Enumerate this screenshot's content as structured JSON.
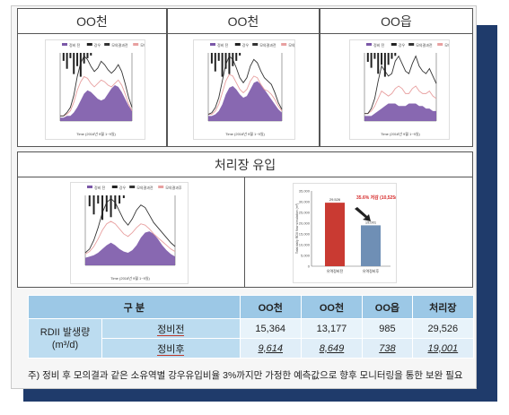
{
  "panels": {
    "top": [
      {
        "title": "OO천"
      },
      {
        "title": "OO천"
      },
      {
        "title": "OO읍"
      }
    ],
    "treatment": {
      "title": "처리장 유입"
    }
  },
  "mini_legend": {
    "items": [
      "정비 전",
      "강우",
      "모의결과전",
      "모의결과후"
    ]
  },
  "colors": {
    "rain": "#222222",
    "before_area": "#7b58a8",
    "sim_line": "#333333",
    "after_line": "#e8a0a0",
    "bar_before": "#c93a32",
    "bar_after": "#6f8fb5",
    "header_bg": "#9cc8e6",
    "frame_dark": "#1f3b6b"
  },
  "chart_data": [
    {
      "type": "area",
      "xlabel": "Time (2016년 9월 1~9일)",
      "series": [
        {
          "name": "정비 전",
          "values": [
            0.2,
            0.2,
            0.3,
            0.3,
            0.5,
            0.8,
            1.2,
            1.6,
            1.8,
            1.7,
            1.5,
            1.3,
            1.2,
            1.3,
            1.6,
            1.9,
            2.1,
            2.0,
            1.7,
            1.3,
            0.9,
            0.6
          ]
        },
        {
          "name": "모의결과전",
          "values": [
            0.3,
            0.3,
            0.5,
            0.8,
            1.5,
            2.6,
            3.4,
            3.8,
            3.6,
            3.2,
            2.9,
            3.1,
            3.5,
            3.3,
            3.0,
            2.8,
            3.0,
            3.3,
            2.9,
            2.2,
            1.4,
            0.8
          ]
        },
        {
          "name": "모의결과후",
          "values": [
            0.3,
            0.3,
            0.4,
            0.6,
            1.1,
            1.8,
            2.3,
            2.6,
            2.5,
            2.2,
            2.0,
            2.2,
            2.4,
            2.3,
            2.1,
            2.0,
            2.2,
            2.4,
            2.1,
            1.6,
            1.0,
            0.6
          ]
        },
        {
          "name": "강우",
          "values": [
            0,
            3,
            6,
            2,
            8,
            5,
            9,
            4,
            2,
            1,
            0,
            0,
            0,
            0,
            0,
            0,
            0,
            0,
            0,
            0,
            0,
            0
          ]
        }
      ]
    },
    {
      "type": "area",
      "xlabel": "Time (2016년 9월 1~9일)",
      "series": [
        {
          "name": "정비 전",
          "values": [
            0.3,
            0.3,
            0.4,
            0.6,
            1.0,
            1.6,
            2.0,
            2.1,
            1.9,
            1.6,
            1.4,
            1.5,
            1.9,
            2.3,
            2.4,
            2.2,
            1.9,
            1.6,
            1.3,
            1.0,
            0.7,
            0.5
          ]
        },
        {
          "name": "모의결과전",
          "values": [
            0.4,
            0.5,
            0.8,
            1.4,
            2.4,
            3.4,
            3.9,
            3.7,
            3.2,
            2.6,
            2.3,
            2.6,
            3.3,
            3.7,
            3.5,
            3.0,
            2.6,
            2.4,
            2.2,
            1.7,
            1.1,
            0.7
          ]
        },
        {
          "name": "모의결과후",
          "values": [
            0.4,
            0.4,
            0.6,
            1.0,
            1.7,
            2.4,
            2.8,
            2.7,
            2.3,
            1.9,
            1.7,
            1.9,
            2.4,
            2.7,
            2.6,
            2.2,
            1.9,
            1.8,
            1.6,
            1.3,
            0.9,
            0.6
          ]
        },
        {
          "name": "강우",
          "values": [
            0,
            4,
            7,
            3,
            9,
            6,
            8,
            5,
            3,
            1,
            0,
            0,
            0,
            0,
            0,
            0,
            0,
            0,
            0,
            0,
            0,
            0
          ]
        }
      ]
    },
    {
      "type": "area",
      "xlabel": "Time (2016년 9월 1~9일)",
      "series": [
        {
          "name": "정비 전",
          "values": [
            0.2,
            0.2,
            0.2,
            0.3,
            0.4,
            0.5,
            0.6,
            0.7,
            0.7,
            0.7,
            0.6,
            0.6,
            0.6,
            0.7,
            0.7,
            0.7,
            0.6,
            0.6,
            0.5,
            0.5,
            0.4,
            0.4
          ]
        },
        {
          "name": "모의결과전",
          "values": [
            0.3,
            0.3,
            0.5,
            0.9,
            1.6,
            2.2,
            2.0,
            1.8,
            1.9,
            2.4,
            2.6,
            2.3,
            2.0,
            1.9,
            2.3,
            2.6,
            2.2,
            2.0,
            1.9,
            2.1,
            1.8,
            1.5
          ]
        },
        {
          "name": "모의결과후",
          "values": [
            0.3,
            0.3,
            0.4,
            0.6,
            0.9,
            1.2,
            1.1,
            1.0,
            1.1,
            1.3,
            1.4,
            1.3,
            1.1,
            1.1,
            1.3,
            1.4,
            1.2,
            1.1,
            1.1,
            1.2,
            1.0,
            0.9
          ]
        },
        {
          "name": "강우",
          "values": [
            0,
            3,
            5,
            2,
            7,
            4,
            8,
            4,
            2,
            1,
            0,
            0,
            0,
            0,
            0,
            0,
            0,
            0,
            0,
            0,
            0,
            0
          ]
        }
      ]
    },
    {
      "type": "area",
      "xlabel": "Time (2016년 9월 1~9일)",
      "series": [
        {
          "name": "정비 전",
          "values": [
            0.6,
            0.7,
            0.8,
            1.0,
            1.3,
            1.6,
            1.8,
            1.6,
            1.3,
            1.1,
            1.0,
            1.2,
            1.6,
            2.2,
            2.6,
            2.7,
            2.5,
            2.1,
            1.6,
            1.2,
            0.9,
            0.7
          ]
        },
        {
          "name": "모의결과전",
          "values": [
            1.0,
            1.3,
            2.0,
            3.0,
            4.2,
            5.0,
            5.3,
            5.0,
            4.3,
            3.6,
            3.2,
            3.7,
            4.4,
            4.8,
            4.6,
            4.0,
            3.4,
            3.0,
            2.6,
            2.2,
            1.8,
            1.5
          ]
        },
        {
          "name": "모의결과후",
          "values": [
            0.9,
            1.1,
            1.5,
            2.1,
            2.8,
            3.3,
            3.5,
            3.3,
            2.9,
            2.5,
            2.3,
            2.6,
            3.0,
            3.3,
            3.2,
            2.9,
            2.5,
            2.2,
            1.9,
            1.6,
            1.3,
            1.1
          ]
        },
        {
          "name": "강우",
          "values": [
            0,
            4,
            7,
            3,
            9,
            6,
            8,
            5,
            3,
            1,
            0,
            0,
            0,
            0,
            0,
            0,
            0,
            0,
            0,
            0,
            0,
            0
          ]
        }
      ]
    },
    {
      "type": "bar",
      "categories": [
        "유역정비전",
        "유역정비후"
      ],
      "values": [
        29526,
        19001
      ],
      "ylim": [
        0,
        35000
      ],
      "ylabel": "Total daily RDII flow simulation (m³)",
      "annotation": "35.6% 저감 (10,525m³)",
      "data_labels": [
        "29,526",
        "19,001"
      ]
    }
  ],
  "table": {
    "header": {
      "category": "구 분",
      "col1": "OO천",
      "col2": "OO천",
      "col3": "OO읍",
      "col4": "처리장"
    },
    "row_label_main": "RDII 발생량",
    "row_label_unit": "(m³/d)",
    "rows": [
      {
        "label": "정비전",
        "v1": "15,364",
        "v2": "13,177",
        "v3": "985",
        "v4": "29,526"
      },
      {
        "label": "정비후",
        "v1": "9,614",
        "v2": "8,649",
        "v3": "738",
        "v4": "19,001"
      }
    ]
  },
  "note": "주) 정비 후 모의결과 같은 소유역별 강우유입비율 3%까지만 가정한 예측값으로 향후 모니터링을 통한 보완 필요"
}
